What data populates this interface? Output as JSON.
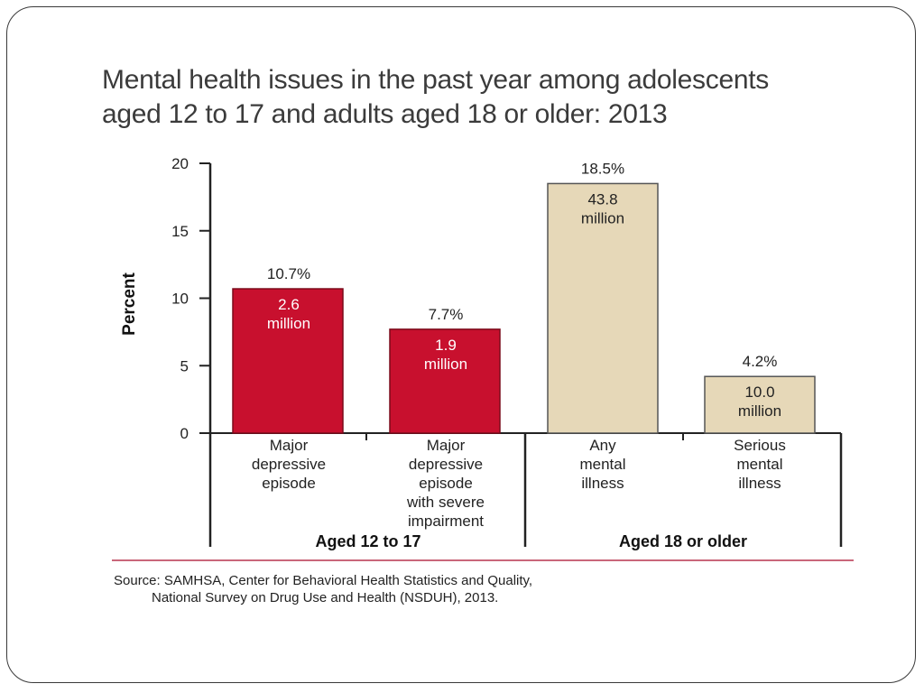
{
  "slide": {
    "title_line1": "Mental health issues in the past year among adolescents",
    "title_line2": "aged 12 to 17 and adults aged 18 or older: 2013",
    "source_line1": "Source: SAMHSA, Center for Behavioral Health Statistics and Quality,",
    "source_line2": "National Survey on Drug Use and Health (NSDUH), 2013."
  },
  "chart_data": {
    "type": "bar",
    "title": "",
    "ylabel": "Percent",
    "xlabel": "",
    "ylim": [
      0,
      20
    ],
    "yticks": [
      "0",
      "5",
      "10",
      "15",
      "20"
    ],
    "categories": [
      [
        "Major",
        "depressive",
        "episode"
      ],
      [
        "Major",
        "depressive",
        "episode",
        "with severe",
        "impairment"
      ],
      [
        "Any",
        "mental",
        "illness"
      ],
      [
        "Serious",
        "mental",
        "illness"
      ]
    ],
    "values": [
      10.7,
      7.7,
      18.5,
      4.2
    ],
    "value_labels": [
      "10.7%",
      "7.7%",
      "18.5%",
      "4.2%"
    ],
    "count_labels": [
      [
        "2.6",
        "million"
      ],
      [
        "1.9",
        "million"
      ],
      [
        "43.8",
        "million"
      ],
      [
        "10.0",
        "million"
      ]
    ],
    "groups": [
      {
        "label": "Aged 12 to 17",
        "categories": [
          0,
          1
        ]
      },
      {
        "label": "Aged 18 or older",
        "categories": [
          2,
          3
        ]
      }
    ],
    "colors": {
      "adolescents": "#c8102e",
      "adults": "#e6d8b8",
      "divider": "#c9677a",
      "axis": "#222222"
    },
    "grid": false,
    "legend": "none"
  }
}
